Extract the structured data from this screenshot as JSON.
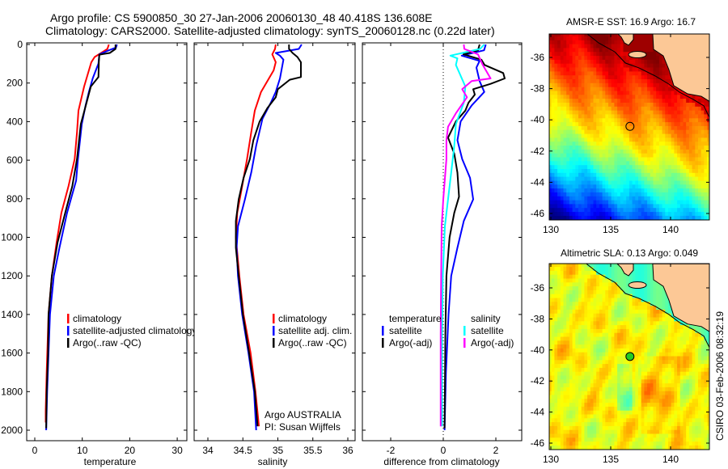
{
  "title": {
    "line1": "Argo profile: CS 5900850_30 27-Jan-2006 20060130_48 40.418S 136.608E",
    "line2": "Climatology: CARS2000. Satellite-adjusted climatology: synTS_20060128.nc (0.22d later)"
  },
  "credit": {
    "institution_stamp": "CSIRO 03-Feb-2006 08:32:19"
  },
  "float_info": {
    "program": "Argo AUSTRALIA",
    "pi": "PI: Susan Wijffels"
  },
  "colors": {
    "climatology": "#ff0000",
    "satellite": "#0000ff",
    "argo": "#000000",
    "salinity_satellite": "#00ffff",
    "salinity_argo": "#ff00ff",
    "land": "#fcc896"
  },
  "chart_data": [
    {
      "type": "line",
      "title": "",
      "xlabel": "temperature",
      "ylabel": "",
      "xlim": [
        -1.7,
        32
      ],
      "ylim": [
        2065,
        -8
      ],
      "xticks": [
        0,
        10,
        20,
        30
      ],
      "yticks": [
        0,
        200,
        400,
        600,
        800,
        1000,
        1200,
        1400,
        1600,
        1800,
        2000
      ],
      "legend": [
        "climatology",
        "satellite-adjusted climatology",
        "Argo(..raw -QC)"
      ],
      "legend_position": "lower-center",
      "series": [
        {
          "name": "climatology",
          "color": "#ff0000",
          "depth": [
            0,
            23,
            65,
            92,
            218,
            343,
            455,
            594,
            734,
            873,
            1026,
            1200,
            1400,
            1700,
            1900,
            1960
          ],
          "values": [
            15.6,
            15.3,
            12.6,
            11.9,
            10.4,
            9.2,
            8.9,
            8.4,
            7.1,
            5.6,
            4.6,
            3.6,
            2.9,
            2.5,
            2.3,
            2.3
          ]
        },
        {
          "name": "satellite-adjusted climatology",
          "color": "#0000ff",
          "depth": [
            0,
            16,
            30,
            51,
            99,
            176,
            246,
            316,
            413,
            594,
            706,
            873,
            1054,
            1200,
            1400,
            1600,
            1800,
            2000
          ],
          "values": [
            17.3,
            17.1,
            15.6,
            13.6,
            13.4,
            12.2,
            11.4,
            10.7,
            9.9,
            9.1,
            8.7,
            6.8,
            5.2,
            4.0,
            3.2,
            2.9,
            2.6,
            2.4
          ]
        },
        {
          "name": "Argo(..raw -QC)",
          "color": "#000000",
          "depth": [
            0,
            23,
            44,
            53,
            92,
            169,
            218,
            330,
            413,
            594,
            734,
            873,
            1026,
            1200,
            1400,
            1600,
            1800,
            1990
          ],
          "values": [
            17.0,
            17.0,
            15.8,
            13.6,
            13.5,
            13.4,
            11.8,
            10.6,
            9.7,
            8.9,
            7.9,
            6.4,
            4.8,
            3.6,
            2.9,
            2.8,
            2.5,
            2.4
          ]
        }
      ]
    },
    {
      "type": "line",
      "title": "",
      "xlabel": "salinity",
      "ylabel": "",
      "xlim": [
        33.8,
        36.1
      ],
      "ylim": [
        2065,
        -8
      ],
      "xticks": [
        34,
        34.5,
        35,
        35.5,
        36
      ],
      "yticks": [
        0,
        200,
        400,
        600,
        800,
        1000,
        1200,
        1400,
        1600,
        1800,
        2000
      ],
      "legend": [
        "climatology",
        "satellite adj. clim.",
        "Argo(..raw -QC)"
      ],
      "legend_position": "lower-right",
      "series": [
        {
          "name": "climatology",
          "color": "#ff0000",
          "depth": [
            0,
            23,
            51,
            92,
            134,
            246,
            343,
            455,
            594,
            734,
            873,
            1000,
            1200,
            1400,
            1600,
            1800,
            1980
          ],
          "values": [
            34.97,
            34.96,
            34.92,
            34.97,
            34.94,
            34.76,
            34.67,
            34.62,
            34.56,
            34.49,
            34.42,
            34.4,
            34.45,
            34.51,
            34.61,
            34.68,
            34.73
          ]
        },
        {
          "name": "satellite adj. clim.",
          "color": "#0000ff",
          "depth": [
            0,
            23,
            44,
            58,
            79,
            176,
            246,
            302,
            385,
            525,
            664,
            803,
            943,
            1054,
            1200,
            1400,
            1600,
            1800,
            2000
          ],
          "values": [
            35.34,
            35.3,
            34.97,
            35.03,
            35.08,
            35.03,
            34.97,
            34.9,
            34.78,
            34.69,
            34.62,
            34.53,
            34.43,
            34.41,
            34.43,
            34.49,
            34.58,
            34.66,
            34.69
          ]
        },
        {
          "name": "Argo(..raw -QC)",
          "color": "#000000",
          "depth": [
            0,
            23,
            44,
            65,
            92,
            169,
            183,
            232,
            274,
            330,
            399,
            497,
            594,
            692,
            803,
            915,
            1054,
            1200,
            1400,
            1600,
            1800,
            1980
          ],
          "values": [
            35.16,
            35.16,
            35.21,
            35.28,
            35.33,
            35.33,
            35.17,
            35.0,
            34.97,
            34.85,
            34.74,
            34.65,
            34.6,
            34.51,
            34.44,
            34.4,
            34.4,
            34.44,
            34.5,
            34.59,
            34.67,
            34.71
          ]
        }
      ]
    },
    {
      "type": "line",
      "title": "",
      "xlabel": "difference from climatology",
      "ylabel": "",
      "xlim": [
        -3.1,
        3.0
      ],
      "ylim": [
        2065,
        -8
      ],
      "xticks": [
        -2,
        0,
        2
      ],
      "yticks": [
        0,
        200,
        400,
        600,
        800,
        1000,
        1200,
        1400,
        1600,
        1800,
        2000
      ],
      "legend_groups": [
        {
          "heading": "temperature",
          "entries": [
            "satellite",
            "Argo(-adj)"
          ]
        },
        {
          "heading": "salinity",
          "entries": [
            "satellite",
            "Argo(-adj)"
          ]
        }
      ],
      "legend_position": "lower-center",
      "series": [
        {
          "name": "temperature satellite",
          "color": "#0000ff",
          "depth": [
            0,
            30,
            58,
            85,
            120,
            190,
            246,
            316,
            399,
            497,
            594,
            692,
            803,
            915,
            1054,
            1200,
            1400,
            1700,
            2000
          ],
          "values": [
            1.62,
            1.55,
            0.7,
            1.38,
            1.26,
            1.38,
            1.56,
            1.08,
            0.66,
            0.54,
            0.72,
            1.02,
            1.14,
            0.78,
            0.54,
            0.3,
            0.2,
            0.1,
            0.05
          ]
        },
        {
          "name": "temperature Argo(-adj)",
          "color": "#000000",
          "depth": [
            0,
            30,
            51,
            79,
            106,
            148,
            176,
            204,
            232,
            260,
            302,
            343,
            399,
            483,
            566,
            664,
            789,
            873,
            1000,
            1200,
            1500,
            1990
          ],
          "values": [
            1.38,
            1.32,
            0.77,
            1.45,
            1.57,
            2.28,
            2.34,
            1.8,
            1.14,
            1.2,
            0.96,
            0.84,
            0.48,
            0.18,
            0.42,
            0.54,
            0.6,
            0.42,
            0.24,
            0.12,
            0.08,
            0.05
          ]
        },
        {
          "name": "salinity satellite",
          "color": "#00ffff",
          "depth": [
            0,
            23,
            58,
            72,
            106,
            218,
            302,
            413,
            525,
            664,
            803,
            943,
            1200,
            1500,
            1980
          ],
          "values": [
            1.56,
            1.4,
            0.27,
            0.54,
            0.48,
            0.84,
            0.78,
            0.48,
            0.42,
            0.3,
            0.18,
            0.06,
            -0.02,
            -0.05,
            -0.05
          ]
        },
        {
          "name": "salinity Argo(-adj)",
          "color": "#ff00ff",
          "depth": [
            0,
            23,
            51,
            106,
            176,
            190,
            232,
            274,
            357,
            427,
            497,
            594,
            803,
            943,
            1200,
            1500,
            1980
          ],
          "values": [
            0.78,
            0.8,
            1.32,
            1.5,
            1.8,
            1.08,
            0.72,
            0.9,
            0.48,
            0.18,
            0.12,
            0.12,
            0.0,
            -0.06,
            -0.08,
            -0.1,
            -0.1
          ]
        }
      ]
    },
    {
      "type": "heatmap",
      "title": "AMSR-E SST: 16.9 Argo: 16.7",
      "xlabel": "",
      "ylabel": "",
      "xlim": [
        129.9,
        143.3
      ],
      "ylim": [
        -46.4,
        -34.5
      ],
      "xticks": [
        130,
        135,
        140
      ],
      "yticks": [
        -36,
        -38,
        -40,
        -42,
        -44,
        -46
      ],
      "colormap": "jet",
      "marker": {
        "lon": 136.608,
        "lat": -40.418
      }
    },
    {
      "type": "heatmap",
      "title": "Altimetric SLA: 0.13 Argo: 0.049",
      "xlabel": "",
      "ylabel": "",
      "xlim": [
        129.9,
        143.3
      ],
      "ylim": [
        -46.4,
        -34.5
      ],
      "xticks": [
        130,
        135,
        140
      ],
      "yticks": [
        -36,
        -38,
        -40,
        -42,
        -44,
        -46
      ],
      "colormap": "jet",
      "marker": {
        "lon": 136.608,
        "lat": -40.418
      }
    }
  ]
}
